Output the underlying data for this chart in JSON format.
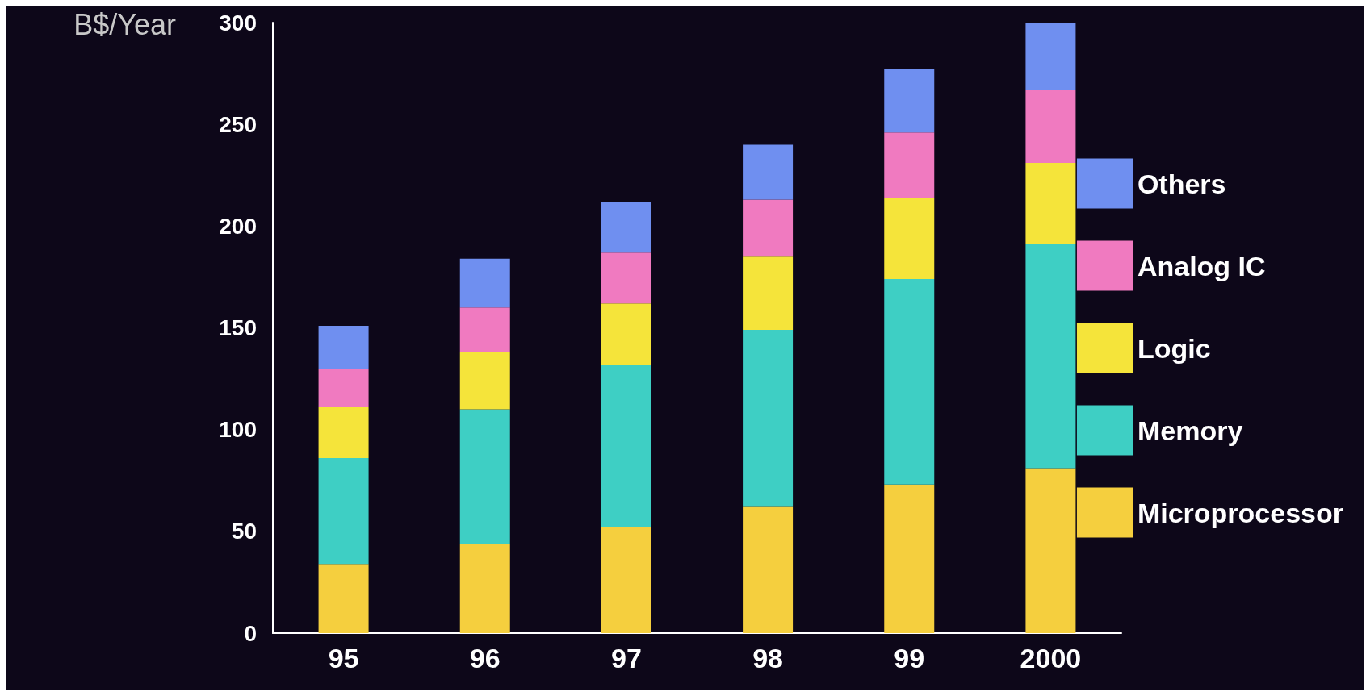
{
  "chart_data": {
    "type": "bar",
    "stacked": true,
    "ylabel": "B$/Year",
    "categories": [
      "95",
      "96",
      "97",
      "98",
      "99",
      "2000"
    ],
    "series": [
      {
        "name": "Microprocessor",
        "color": "#f5cf3e",
        "values": [
          34,
          44,
          52,
          62,
          73,
          81
        ]
      },
      {
        "name": "Memory",
        "color": "#3ecfc4",
        "values": [
          52,
          66,
          80,
          87,
          101,
          110
        ]
      },
      {
        "name": "Logic",
        "color": "#f5e43a",
        "values": [
          25,
          28,
          30,
          36,
          40,
          40
        ]
      },
      {
        "name": "Analog IC",
        "color": "#f07ac0",
        "values": [
          19,
          22,
          25,
          28,
          32,
          36
        ]
      },
      {
        "name": "Others",
        "color": "#6f8ff0",
        "values": [
          21,
          24,
          25,
          27,
          31,
          33
        ]
      }
    ],
    "ylim": [
      0,
      300
    ],
    "yticks": [
      0,
      50,
      100,
      150,
      200,
      250,
      300
    ],
    "grid": false,
    "legend": "right"
  }
}
